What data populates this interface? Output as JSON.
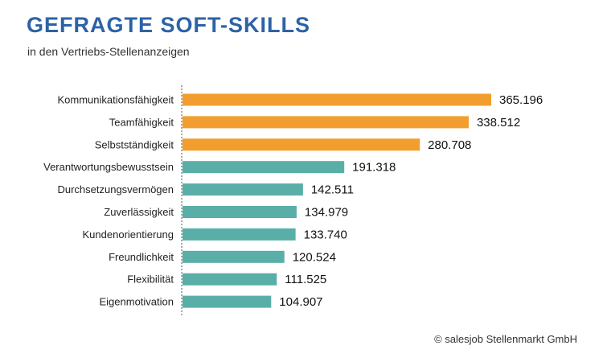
{
  "header": {
    "title": "GEFRAGTE SOFT-SKILLS",
    "subtitle": "in den Vertriebs-Stellenanzeigen"
  },
  "footer": {
    "source": "© salesjob Stellenmarkt GmbH"
  },
  "colors": {
    "highlight": "#f29e2e",
    "default": "#5aaea8",
    "title": "#2c63a6",
    "axis": "#555555"
  },
  "chart_data": {
    "type": "bar",
    "orientation": "horizontal",
    "title": "GEFRAGTE SOFT-SKILLS",
    "subtitle": "in den Vertriebs-Stellenanzeigen",
    "xlabel": "",
    "ylabel": "",
    "xlim": [
      0,
      365196
    ],
    "grid": false,
    "categories": [
      "Kommunikationsfähigkeit",
      "Teamfähigkeit",
      "Selbstständigkeit",
      "Verantwortungsbewusstsein",
      "Durchsetzungsvermögen",
      "Zuverlässigkeit",
      "Kundenorientierung",
      "Freundlichkeit",
      "Flexibilität",
      "Eigenmotivation"
    ],
    "values": [
      365196,
      338512,
      280708,
      191318,
      142511,
      134979,
      133740,
      120524,
      111525,
      104907
    ],
    "value_labels": [
      "365.196",
      "338.512",
      "280.708",
      "191.318",
      "142.511",
      "134.979",
      "133.740",
      "120.524",
      "111.525",
      "104.907"
    ],
    "highlighted": [
      true,
      true,
      true,
      false,
      false,
      false,
      false,
      false,
      false,
      false
    ]
  }
}
